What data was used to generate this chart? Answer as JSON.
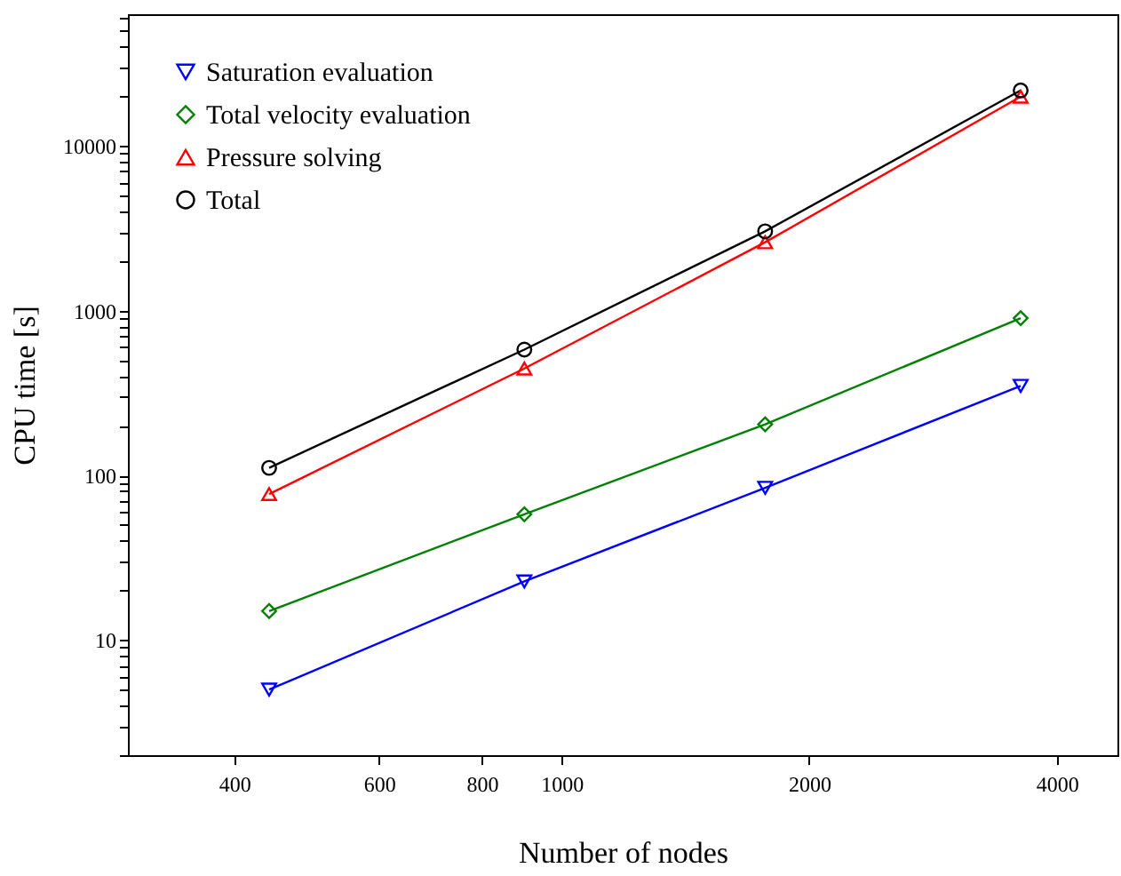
{
  "chart_data": {
    "type": "line",
    "xlabel": "Number of nodes",
    "ylabel": "CPU time [s]",
    "x": [
      441,
      901,
      1768,
      3615
    ],
    "series": [
      {
        "name": "Saturation evaluation",
        "color": "#0000ff",
        "marker": "triangle-down",
        "values": [
          5.0,
          22.7,
          84,
          349
        ]
      },
      {
        "name": "Total velocity evaluation",
        "color": "#008000",
        "marker": "diamond",
        "values": [
          15,
          58,
          204,
          900
        ]
      },
      {
        "name": "Pressure solving",
        "color": "#ff0000",
        "marker": "triangle",
        "values": [
          77,
          445,
          2600,
          19900
        ]
      },
      {
        "name": "Total",
        "color": "#000000",
        "marker": "circle",
        "values": [
          111,
          580,
          3030,
          21700
        ]
      }
    ],
    "log": "xy",
    "xlim": [
      297,
      4740
    ],
    "ylim": [
      2,
      63000
    ],
    "xticks": [
      400,
      600,
      800,
      1000,
      2000,
      4000
    ],
    "yticks": [
      {
        "value": 2,
        "label": null
      },
      {
        "value": 3,
        "label": null
      },
      {
        "value": 4,
        "label": null
      },
      {
        "value": 5,
        "label": null
      },
      {
        "value": 6,
        "label": null
      },
      {
        "value": 7,
        "label": null
      },
      {
        "value": 8,
        "label": null
      },
      {
        "value": 9,
        "label": null
      },
      10,
      {
        "value": 20,
        "label": null
      },
      {
        "value": 30,
        "label": null
      },
      {
        "value": 40,
        "label": null
      },
      {
        "value": 50,
        "label": null
      },
      {
        "value": 60,
        "label": null
      },
      {
        "value": 70,
        "label": null
      },
      {
        "value": 80,
        "label": null
      },
      {
        "value": 90,
        "label": null
      },
      100,
      {
        "value": 200,
        "label": null
      },
      {
        "value": 300,
        "label": null
      },
      {
        "value": 400,
        "label": null
      },
      {
        "value": 500,
        "label": null
      },
      {
        "value": 600,
        "label": null
      },
      {
        "value": 700,
        "label": null
      },
      {
        "value": 800,
        "label": null
      },
      {
        "value": 900,
        "label": null
      },
      1000,
      {
        "value": 2000,
        "label": null
      },
      {
        "value": 3000,
        "label": null
      },
      {
        "value": 4000,
        "label": null
      },
      {
        "value": 5000,
        "label": null
      },
      {
        "value": 6000,
        "label": null
      },
      {
        "value": 7000,
        "label": null
      },
      {
        "value": 8000,
        "label": null
      },
      {
        "value": 9000,
        "label": null
      },
      10000,
      {
        "value": 20000,
        "label": null
      },
      {
        "value": 30000,
        "label": null
      },
      {
        "value": 40000,
        "label": null
      },
      {
        "value": 50000,
        "label": null
      },
      {
        "value": 60000,
        "label": null
      }
    ],
    "grid": false,
    "legend": "top left",
    "line_style": "solid"
  }
}
